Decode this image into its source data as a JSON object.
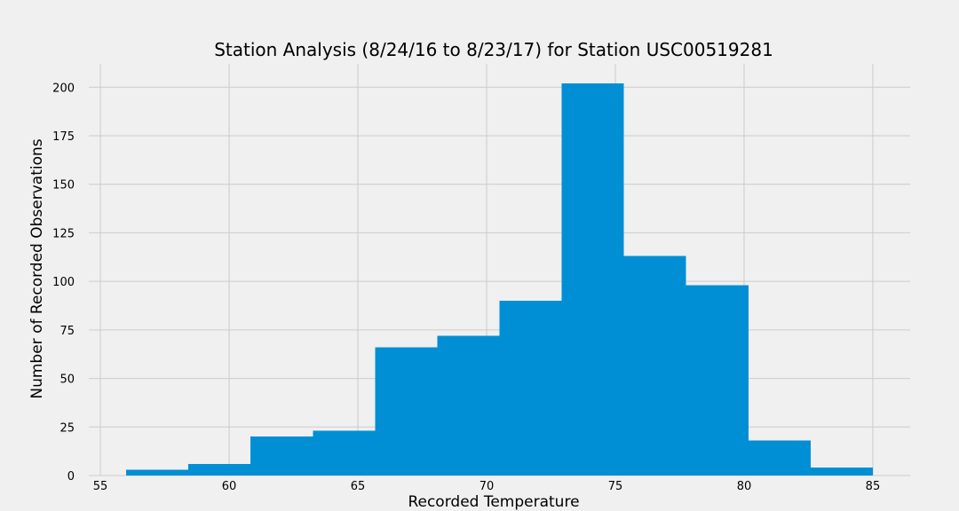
{
  "chart_data": {
    "type": "bar",
    "title": "Station Analysis (8/24/16 to 8/23/17) for Station USC00519281",
    "xlabel": "Recorded Temperature",
    "ylabel": "Number of Recorded Observations",
    "xlim": [
      54.55,
      86.45
    ],
    "ylim": [
      0,
      212
    ],
    "x_ticks": [
      55,
      60,
      65,
      70,
      75,
      80,
      85
    ],
    "y_ticks": [
      0,
      25,
      50,
      75,
      100,
      125,
      150,
      175,
      200
    ],
    "grid": true,
    "bar_color": "#008fd5",
    "bins": [
      {
        "x0": 56.0,
        "x1": 58.42,
        "count": 3
      },
      {
        "x0": 58.42,
        "x1": 60.83,
        "count": 6
      },
      {
        "x0": 60.83,
        "x1": 63.25,
        "count": 20
      },
      {
        "x0": 63.25,
        "x1": 65.67,
        "count": 23
      },
      {
        "x0": 65.67,
        "x1": 68.08,
        "count": 66
      },
      {
        "x0": 68.08,
        "x1": 70.5,
        "count": 72
      },
      {
        "x0": 70.5,
        "x1": 72.92,
        "count": 90
      },
      {
        "x0": 72.92,
        "x1": 75.33,
        "count": 202
      },
      {
        "x0": 75.33,
        "x1": 77.75,
        "count": 113
      },
      {
        "x0": 77.75,
        "x1": 80.17,
        "count": 98
      },
      {
        "x0": 80.17,
        "x1": 82.58,
        "count": 18
      },
      {
        "x0": 82.58,
        "x1": 85.0,
        "count": 4
      }
    ]
  }
}
